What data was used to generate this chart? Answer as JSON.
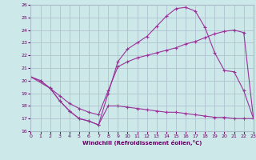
{
  "xlabel": "Windchill (Refroidissement éolien,°C)",
  "bg_color": "#cce8e8",
  "grid_color": "#aabbcc",
  "line_color": "#993399",
  "xlim": [
    0,
    23
  ],
  "ylim": [
    16,
    26
  ],
  "xticks": [
    0,
    1,
    2,
    3,
    4,
    5,
    6,
    7,
    8,
    9,
    10,
    11,
    12,
    13,
    14,
    15,
    16,
    17,
    18,
    19,
    20,
    21,
    22,
    23
  ],
  "yticks": [
    16,
    17,
    18,
    19,
    20,
    21,
    22,
    23,
    24,
    25,
    26
  ],
  "line1_x": [
    0,
    1,
    2,
    3,
    4,
    5,
    6,
    7,
    8,
    9,
    10,
    11,
    12,
    13,
    14,
    15,
    16,
    17,
    18,
    19,
    20,
    21,
    22,
    23
  ],
  "line1_y": [
    20.3,
    20.0,
    19.4,
    18.8,
    18.2,
    17.8,
    17.5,
    17.3,
    19.2,
    21.1,
    21.5,
    21.8,
    22.0,
    22.2,
    22.4,
    22.6,
    22.9,
    23.1,
    23.4,
    23.7,
    23.9,
    24.0,
    23.8,
    17.0
  ],
  "line2_x": [
    0,
    1,
    2,
    3,
    4,
    5,
    6,
    7,
    8,
    9,
    10,
    11,
    12,
    13,
    14,
    15,
    16,
    17,
    18,
    19,
    20,
    21,
    22,
    23
  ],
  "line2_y": [
    20.3,
    20.0,
    19.4,
    18.4,
    17.6,
    17.0,
    16.8,
    16.5,
    19.0,
    21.5,
    22.5,
    23.0,
    23.5,
    24.3,
    25.1,
    25.7,
    25.8,
    25.5,
    24.2,
    22.2,
    20.8,
    20.7,
    19.2,
    17.0
  ],
  "line3_x": [
    0,
    2,
    3,
    4,
    5,
    6,
    7,
    8,
    9,
    10,
    11,
    12,
    13,
    14,
    15,
    16,
    17,
    18,
    19,
    20,
    21,
    22,
    23
  ],
  "line3_y": [
    20.3,
    19.4,
    18.4,
    17.6,
    17.0,
    16.8,
    16.5,
    18.0,
    18.0,
    17.9,
    17.8,
    17.7,
    17.6,
    17.5,
    17.5,
    17.4,
    17.3,
    17.2,
    17.1,
    17.1,
    17.0,
    17.0,
    17.0
  ]
}
